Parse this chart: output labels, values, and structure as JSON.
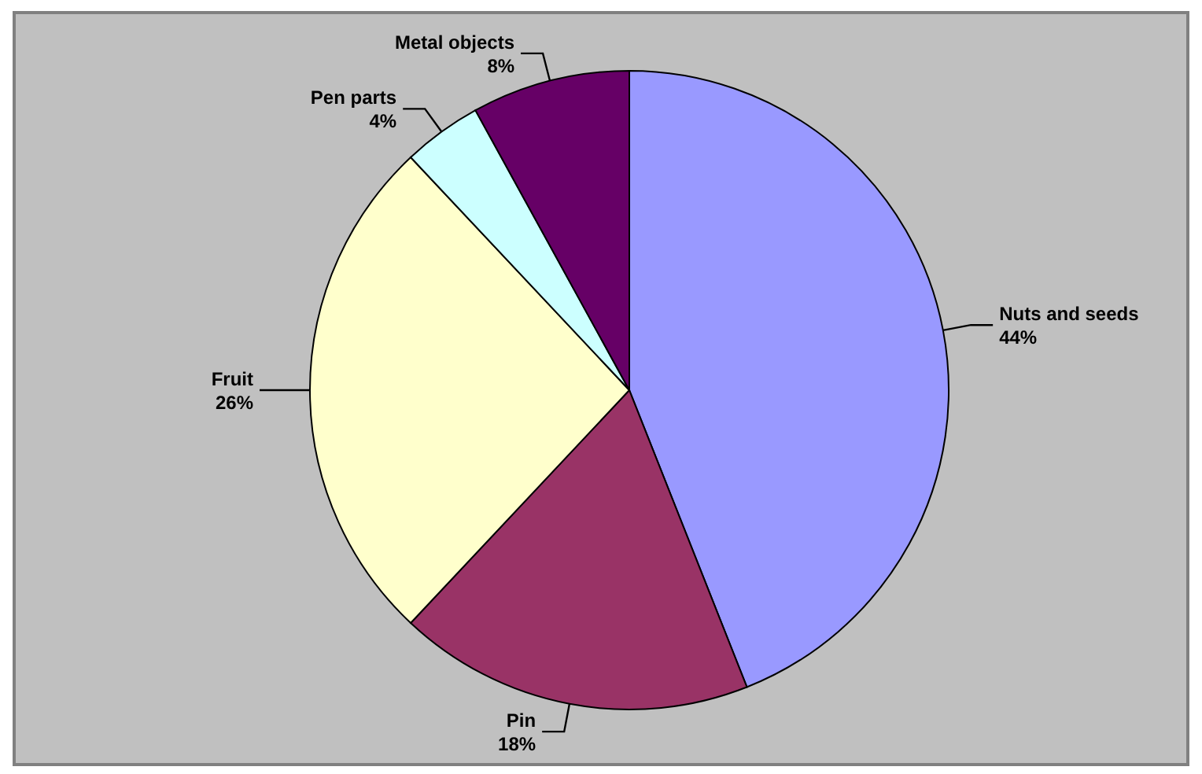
{
  "chart_data": {
    "type": "pie",
    "categories": [
      "Nuts and seeds",
      "Pin",
      "Fruit",
      "Pen parts",
      "Metal objects"
    ],
    "values": [
      44,
      18,
      26,
      4,
      8
    ],
    "colors": [
      "#9999ff",
      "#993366",
      "#ffffcc",
      "#ccffff",
      "#660066"
    ],
    "value_labels": [
      "44%",
      "18%",
      "26%",
      "4%",
      "8%"
    ]
  }
}
